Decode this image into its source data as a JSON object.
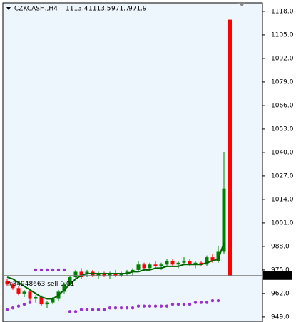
{
  "chart_data": {
    "type": "candlestick",
    "symbol": "CZKCASH.,H4",
    "ylim": [
      946.2,
      1122.7
    ],
    "yticks": [
      {
        "value": 1118,
        "label": "1118.0"
      },
      {
        "value": 1105,
        "label": "1105.0"
      },
      {
        "value": 1092,
        "label": "1092.0"
      },
      {
        "value": 1079,
        "label": "1079.0"
      },
      {
        "value": 1066,
        "label": "1066.0"
      },
      {
        "value": 1053,
        "label": "1053.0"
      },
      {
        "value": 1040,
        "label": "1040.0"
      },
      {
        "value": 1027,
        "label": "1027.0"
      },
      {
        "value": 1014,
        "label": "1014.0"
      },
      {
        "value": 1001,
        "label": "1001.0"
      },
      {
        "value": 988,
        "label": "988.0"
      },
      {
        "value": 975,
        "label": "975.0"
      },
      {
        "value": 962,
        "label": "962.0"
      },
      {
        "value": 949,
        "label": "949.0"
      }
    ],
    "up_color": "#008000",
    "down_color": "#ff0000",
    "series": [
      {
        "open": [
          969,
          967,
          965,
          962,
          963,
          959,
          960,
          956,
          957,
          959,
          963,
          967,
          971,
          974,
          973,
          974,
          972,
          973,
          972,
          973,
          972,
          973,
          974,
          975,
          978,
          976,
          978,
          977,
          978,
          980,
          978,
          979,
          980,
          978,
          979,
          978,
          982,
          980,
          985,
          1113.4
        ],
        "high": [
          970,
          968,
          966,
          964,
          964,
          961,
          961,
          958,
          960,
          964,
          968,
          972,
          975,
          976,
          975,
          975,
          974,
          974,
          974,
          975,
          974,
          975,
          976,
          980,
          979,
          979,
          980,
          979,
          981,
          981,
          980,
          982,
          981,
          980,
          980,
          983,
          984,
          988,
          1040,
          1113.5
        ],
        "low": [
          966,
          964,
          961,
          960,
          958,
          957,
          955,
          954,
          956,
          958,
          962,
          966,
          970,
          970,
          971,
          971,
          970,
          971,
          970,
          971,
          971,
          972,
          972,
          974,
          975,
          975,
          976,
          975,
          977,
          977,
          976,
          978,
          977,
          976,
          977,
          977,
          979,
          979,
          984,
          971.7
        ],
        "close": [
          967,
          965,
          962,
          963,
          959,
          960,
          956,
          957,
          959,
          963,
          967,
          971,
          974,
          971,
          974,
          972,
          973,
          972,
          973,
          972,
          973,
          974,
          975,
          978,
          976,
          978,
          977,
          978,
          980,
          978,
          979,
          980,
          978,
          979,
          978,
          982,
          980,
          985,
          1020,
          971.9
        ]
      }
    ],
    "moving_average": {
      "color": "#006400",
      "values": [
        971,
        970,
        968,
        966,
        964,
        962,
        960,
        959,
        959,
        961,
        964,
        967,
        970,
        972,
        973,
        973,
        973,
        973,
        973,
        973,
        973,
        973,
        974,
        974,
        975,
        975,
        976,
        976,
        977,
        977,
        977,
        978,
        978,
        978,
        978,
        979,
        980,
        981,
        990,
        null
      ]
    },
    "sar": {
      "color": "#9932cc",
      "values": [
        953,
        954,
        955,
        956,
        957,
        975,
        975,
        975,
        975,
        975,
        975,
        952,
        952,
        953,
        953,
        953,
        953,
        953,
        954,
        954,
        954,
        954,
        954,
        955,
        955,
        955,
        955,
        955,
        955,
        956,
        956,
        956,
        956,
        957,
        957,
        957,
        958,
        958,
        null,
        null
      ]
    },
    "order": {
      "label": "#34948663 sell 0.01",
      "price": 967.3
    }
  }
}
